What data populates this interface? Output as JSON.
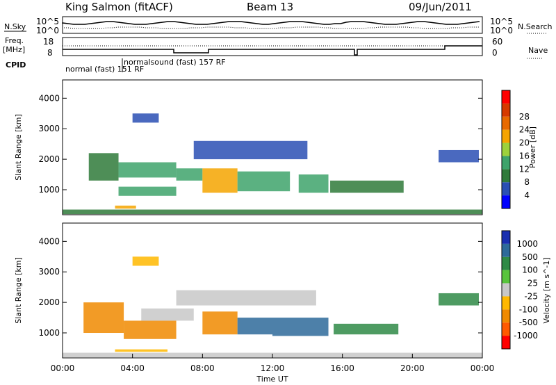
{
  "header": {
    "station": "King Salmon (fitACF)",
    "beam": "Beam 13",
    "date": "09/Jun/2011"
  },
  "status_panel": {
    "left_labels": [
      "N.Sky",
      "Freq.",
      "[MHz]",
      "CPID"
    ],
    "right_labels": [
      "N.Search",
      "Nave"
    ],
    "nsky_ticks": [
      "10^5",
      "10^0"
    ],
    "nsearch_ticks": [
      "10^5",
      "10^0"
    ],
    "freq_ticks": [
      "18",
      "8"
    ],
    "nave_ticks": [
      "60",
      "0"
    ],
    "cpid_labels": [
      {
        "text": "normal (fast) 151 RF",
        "time_h": 0.0
      },
      {
        "text": "normalsound (fast) 157 RF",
        "time_h": 3.4
      }
    ]
  },
  "colors": {
    "power_scale": [
      "#0000ff",
      "#2a4fb4",
      "#2f7a3a",
      "#3ea36b",
      "#9dd13c",
      "#f5a400",
      "#e86a00",
      "#d63a00",
      "#ff0000"
    ],
    "velocity_scale": [
      "#1a2fb0",
      "#2e6a9a",
      "#2f8a46",
      "#58c43c",
      "#c8c8c8",
      "#ffb800",
      "#f08a00",
      "#ff5a00",
      "#ff0000"
    ]
  },
  "chart_data": [
    {
      "type": "heatmap",
      "name": "Power",
      "xlabel": "",
      "ylabel": "Slant Range [km]",
      "xlim": [
        0,
        24
      ],
      "ylim": [
        180,
        4600
      ],
      "yticks": [
        1000,
        2000,
        3000,
        4000
      ],
      "colorbar_label": "Power [dB]",
      "colorbar_ticks": [
        4,
        8,
        12,
        16,
        20,
        24,
        28
      ],
      "colorbar_range": [
        0,
        32
      ],
      "bands": [
        {
          "t0": 1.5,
          "t1": 3.2,
          "r0": 1300,
          "r1": 2200,
          "v": 10
        },
        {
          "t0": 3.2,
          "t1": 6.5,
          "r0": 1400,
          "r1": 1900,
          "v": 14
        },
        {
          "t0": 3.2,
          "t1": 6.5,
          "r0": 800,
          "r1": 1100,
          "v": 12
        },
        {
          "t0": 6.5,
          "t1": 8.0,
          "r0": 1300,
          "r1": 1700,
          "v": 12
        },
        {
          "t0": 8.0,
          "t1": 10.0,
          "r0": 900,
          "r1": 1700,
          "v": 20
        },
        {
          "t0": 10.0,
          "t1": 13.0,
          "r0": 950,
          "r1": 1600,
          "v": 14
        },
        {
          "t0": 13.5,
          "t1": 15.2,
          "r0": 900,
          "r1": 1500,
          "v": 12
        },
        {
          "t0": 15.3,
          "t1": 19.5,
          "r0": 900,
          "r1": 1300,
          "v": 8
        },
        {
          "t0": 4.0,
          "t1": 5.5,
          "r0": 3200,
          "r1": 3500,
          "v": 6
        },
        {
          "t0": 7.5,
          "t1": 14.0,
          "r0": 2000,
          "r1": 2600,
          "v": 6
        },
        {
          "t0": 21.5,
          "t1": 23.8,
          "r0": 1900,
          "r1": 2300,
          "v": 6
        },
        {
          "t0": 0.0,
          "t1": 24.0,
          "r0": 200,
          "r1": 350,
          "v": 8
        },
        {
          "t0": 3.0,
          "t1": 4.2,
          "r0": 380,
          "r1": 480,
          "v": 22
        }
      ]
    },
    {
      "type": "heatmap",
      "name": "Velocity",
      "xlabel": "Time UT",
      "ylabel": "Slant Range [km]",
      "xlim": [
        0,
        24
      ],
      "ylim": [
        180,
        4600
      ],
      "xticks": [
        "00:00",
        "04:00",
        "08:00",
        "12:00",
        "16:00",
        "20:00",
        "00:00"
      ],
      "yticks": [
        1000,
        2000,
        3000,
        4000
      ],
      "colorbar_label": "Velocity [m s^-1]",
      "colorbar_ticks": [
        "1000",
        "500",
        "100",
        "25",
        "-25",
        "-100",
        "-500",
        "-1000"
      ],
      "bands": [
        {
          "t0": 1.2,
          "t1": 3.5,
          "r0": 1000,
          "r1": 2000,
          "v": -500
        },
        {
          "t0": 3.5,
          "t1": 6.5,
          "r0": 800,
          "r1": 1400,
          "v": -500
        },
        {
          "t0": 4.5,
          "t1": 7.5,
          "r0": 1400,
          "r1": 1800,
          "v": 0
        },
        {
          "t0": 8.0,
          "t1": 10.0,
          "r0": 950,
          "r1": 1700,
          "v": -500
        },
        {
          "t0": 10.0,
          "t1": 12.0,
          "r0": 950,
          "r1": 1500,
          "v": 500
        },
        {
          "t0": 12.0,
          "t1": 15.2,
          "r0": 900,
          "r1": 1500,
          "v": 500
        },
        {
          "t0": 15.5,
          "t1": 19.2,
          "r0": 950,
          "r1": 1300,
          "v": 100
        },
        {
          "t0": 6.5,
          "t1": 14.5,
          "r0": 1900,
          "r1": 2400,
          "v": 0
        },
        {
          "t0": 4.0,
          "t1": 5.5,
          "r0": 3200,
          "r1": 3500,
          "v": -100
        },
        {
          "t0": 21.5,
          "t1": 23.8,
          "r0": 1900,
          "r1": 2300,
          "v": 100
        },
        {
          "t0": 0.0,
          "t1": 24.0,
          "r0": 200,
          "r1": 350,
          "v": -25
        },
        {
          "t0": 3.0,
          "t1": 6.0,
          "r0": 380,
          "r1": 460,
          "v": -100
        }
      ]
    }
  ]
}
